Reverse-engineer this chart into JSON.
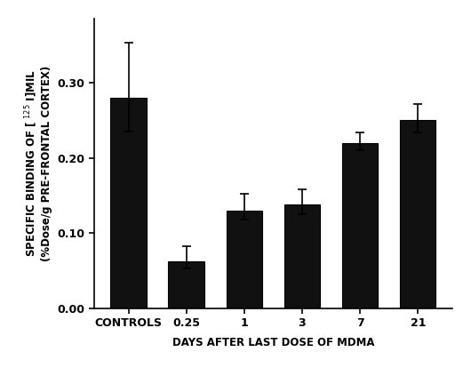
{
  "categories": [
    "CONTROLS",
    "0.25",
    "1",
    "3",
    "7",
    "21"
  ],
  "values": [
    0.28,
    0.063,
    0.13,
    0.138,
    0.22,
    0.25
  ],
  "errors_upper": [
    0.073,
    0.02,
    0.022,
    0.02,
    0.014,
    0.022
  ],
  "errors_lower": [
    0.045,
    0.01,
    0.012,
    0.013,
    0.01,
    0.016
  ],
  "bar_color": "#111111",
  "bar_edgecolor": "#000000",
  "background_color": "#ffffff",
  "xlabel": "DAYS AFTER LAST DOSE OF MDMA",
  "ylabel_line1": "SPECIFIC BINDING OF [ 125 I]MIL",
  "ylabel_line2": "(%Dose/g PRE-FRONTAL CORTEX)",
  "ylim": [
    0,
    0.385
  ],
  "yticks": [
    0.0,
    0.1,
    0.2,
    0.3
  ],
  "bar_width": 0.62,
  "axis_fontsize": 8.5,
  "tick_fontsize": 9,
  "label_fontsize": 8.5
}
